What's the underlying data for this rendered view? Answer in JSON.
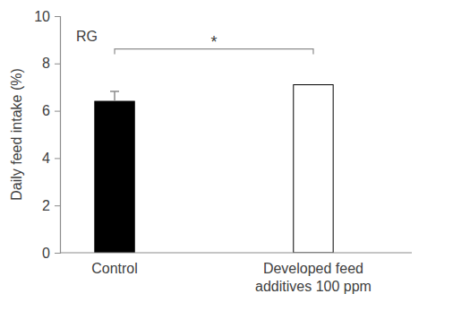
{
  "chart_data": {
    "type": "bar",
    "y_label": "Daily feed intake (%)",
    "categories": [
      "Control",
      "Developed feed additives 100 ppm"
    ],
    "values": [
      6.4,
      7.1
    ],
    "errors": [
      0.42,
      null
    ],
    "colors": [
      "#000000",
      "#ffffff"
    ],
    "annotations": [
      "RG",
      "*"
    ],
    "ylim": [
      0,
      10
    ],
    "yticks": [
      0,
      2,
      4,
      6,
      8,
      10
    ],
    "grid": false
  }
}
